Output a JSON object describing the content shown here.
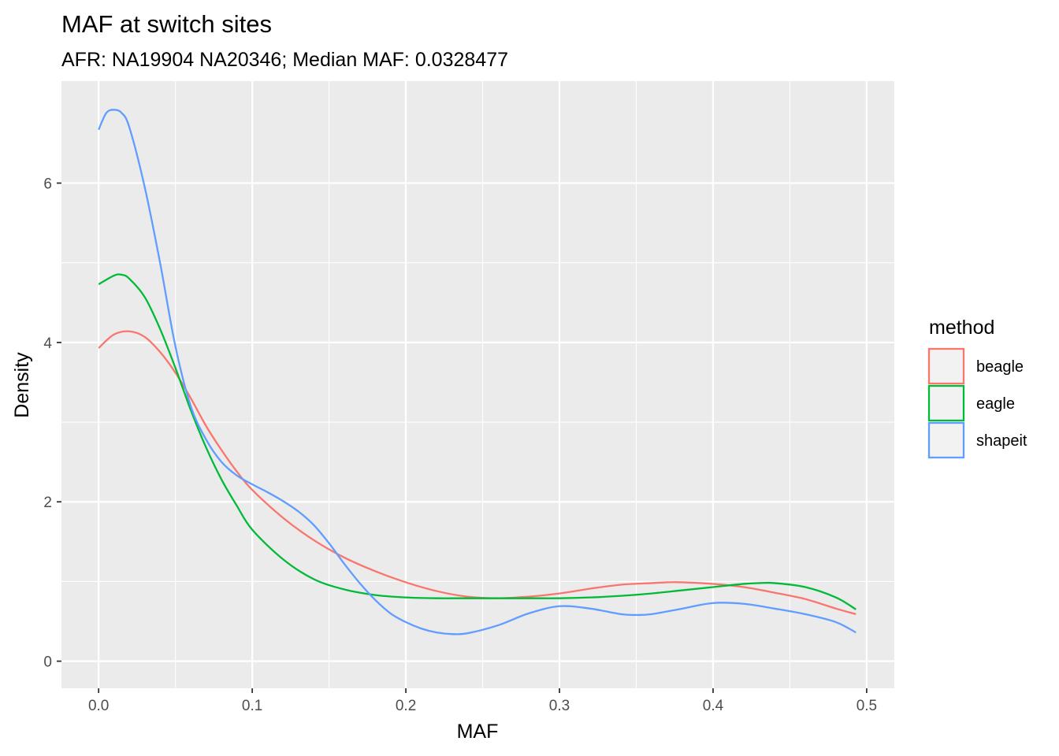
{
  "chart_data": {
    "type": "line",
    "title": "MAF at switch sites",
    "subtitle": "AFR: NA19904 NA20346; Median MAF: 0.0328477",
    "xlabel": "MAF",
    "ylabel": "Density",
    "xlim": [
      -0.0242,
      0.518
    ],
    "ylim": [
      -0.34,
      7.28
    ],
    "x_ticks": [
      0.0,
      0.1,
      0.2,
      0.3,
      0.4,
      0.5
    ],
    "x_tick_labels": [
      "0.0",
      "0.1",
      "0.2",
      "0.3",
      "0.4",
      "0.5"
    ],
    "y_ticks": [
      0,
      2,
      4,
      6
    ],
    "y_tick_labels": [
      "0",
      "2",
      "4",
      "6"
    ],
    "grid": true,
    "legend": {
      "title": "method",
      "position": "right"
    },
    "series": [
      {
        "name": "beagle",
        "color": "#F8766D",
        "x": [
          0.0,
          0.01,
          0.02,
          0.03,
          0.04,
          0.05,
          0.06,
          0.07,
          0.08,
          0.09,
          0.1,
          0.12,
          0.14,
          0.16,
          0.18,
          0.2,
          0.22,
          0.24,
          0.26,
          0.28,
          0.3,
          0.32,
          0.34,
          0.36,
          0.37,
          0.38,
          0.4,
          0.42,
          0.44,
          0.46,
          0.48,
          0.493
        ],
        "y": [
          3.93,
          4.1,
          4.14,
          4.07,
          3.88,
          3.62,
          3.3,
          2.95,
          2.65,
          2.38,
          2.15,
          1.8,
          1.52,
          1.3,
          1.13,
          0.99,
          0.88,
          0.81,
          0.79,
          0.81,
          0.85,
          0.91,
          0.96,
          0.98,
          0.99,
          0.99,
          0.97,
          0.93,
          0.86,
          0.78,
          0.66,
          0.59
        ]
      },
      {
        "name": "eagle",
        "color": "#00BA38",
        "x": [
          0.0,
          0.01,
          0.015,
          0.02,
          0.03,
          0.04,
          0.05,
          0.06,
          0.07,
          0.08,
          0.09,
          0.1,
          0.12,
          0.14,
          0.16,
          0.18,
          0.2,
          0.22,
          0.24,
          0.26,
          0.28,
          0.3,
          0.32,
          0.34,
          0.36,
          0.38,
          0.4,
          0.42,
          0.43,
          0.44,
          0.46,
          0.48,
          0.493
        ],
        "y": [
          4.73,
          4.84,
          4.85,
          4.8,
          4.57,
          4.17,
          3.68,
          3.15,
          2.68,
          2.28,
          1.95,
          1.65,
          1.28,
          1.03,
          0.9,
          0.83,
          0.8,
          0.79,
          0.79,
          0.79,
          0.79,
          0.79,
          0.8,
          0.82,
          0.85,
          0.89,
          0.93,
          0.97,
          0.98,
          0.98,
          0.93,
          0.8,
          0.65
        ]
      },
      {
        "name": "shapeit",
        "color": "#619CFF",
        "x": [
          0.0,
          0.005,
          0.01,
          0.015,
          0.02,
          0.03,
          0.04,
          0.05,
          0.06,
          0.07,
          0.08,
          0.09,
          0.1,
          0.11,
          0.12,
          0.13,
          0.14,
          0.15,
          0.16,
          0.17,
          0.18,
          0.19,
          0.2,
          0.21,
          0.22,
          0.23,
          0.24,
          0.26,
          0.28,
          0.3,
          0.32,
          0.34,
          0.35,
          0.36,
          0.38,
          0.4,
          0.42,
          0.44,
          0.46,
          0.48,
          0.493
        ],
        "y": [
          6.67,
          6.88,
          6.92,
          6.88,
          6.7,
          5.95,
          5.0,
          3.95,
          3.2,
          2.78,
          2.5,
          2.33,
          2.22,
          2.12,
          2.01,
          1.88,
          1.71,
          1.48,
          1.22,
          0.98,
          0.77,
          0.6,
          0.49,
          0.41,
          0.36,
          0.34,
          0.35,
          0.45,
          0.6,
          0.69,
          0.66,
          0.59,
          0.58,
          0.59,
          0.66,
          0.73,
          0.72,
          0.66,
          0.59,
          0.49,
          0.36
        ]
      }
    ]
  }
}
